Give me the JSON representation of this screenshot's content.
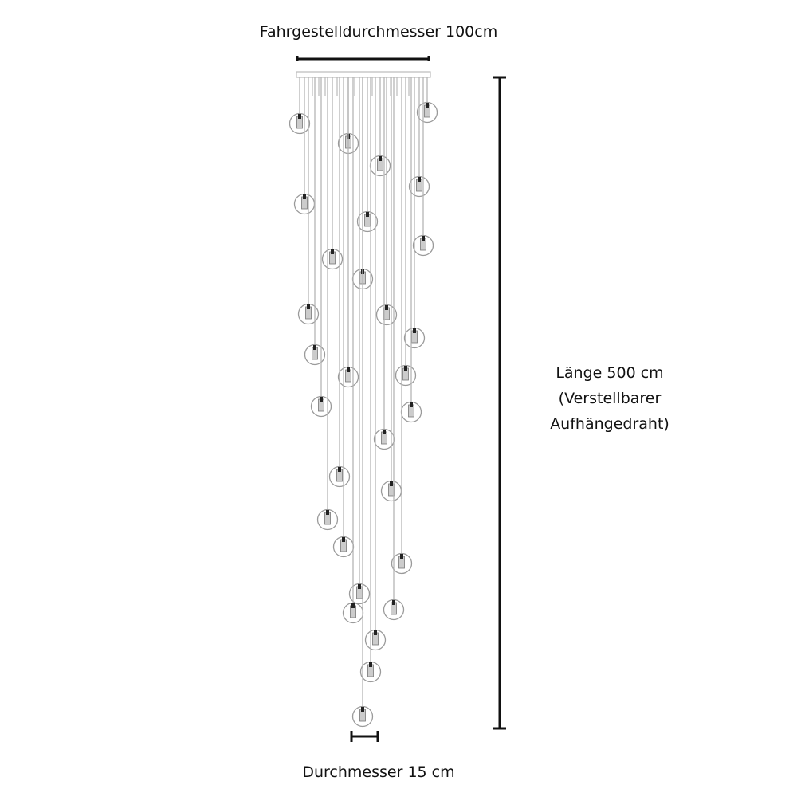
{
  "labels": {
    "frame_diameter": "Fahrgestelldurchmesser 100cm",
    "length_line1": "Länge 500 cm",
    "length_line2": "(Verstellbarer",
    "length_line3": "Aufhängedraht)",
    "globe_diameter": "Durchmesser 15 cm"
  },
  "colors": {
    "dimension_line": "#111111",
    "wire": "#b5b5b5",
    "globe": "#9a9a9a"
  },
  "pendant_count": 30
}
